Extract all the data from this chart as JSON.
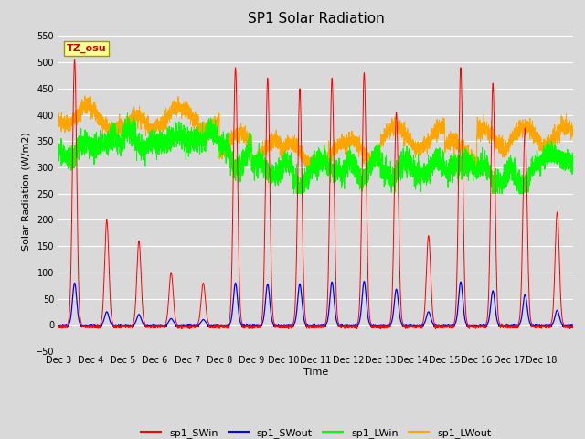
{
  "title": "SP1 Solar Radiation",
  "ylabel": "Solar Radiation (W/m2)",
  "xlabel": "Time",
  "ylim": [
    -50,
    560
  ],
  "yticks": [
    -50,
    0,
    50,
    100,
    150,
    200,
    250,
    300,
    350,
    400,
    450,
    500,
    550
  ],
  "bg_color": "#d9d9d9",
  "plot_bg_color": "#d9d9d9",
  "grid_color": "white",
  "tz_label": "TZ_osu",
  "n_days": 16,
  "start_day": 3,
  "points_per_day": 288
}
